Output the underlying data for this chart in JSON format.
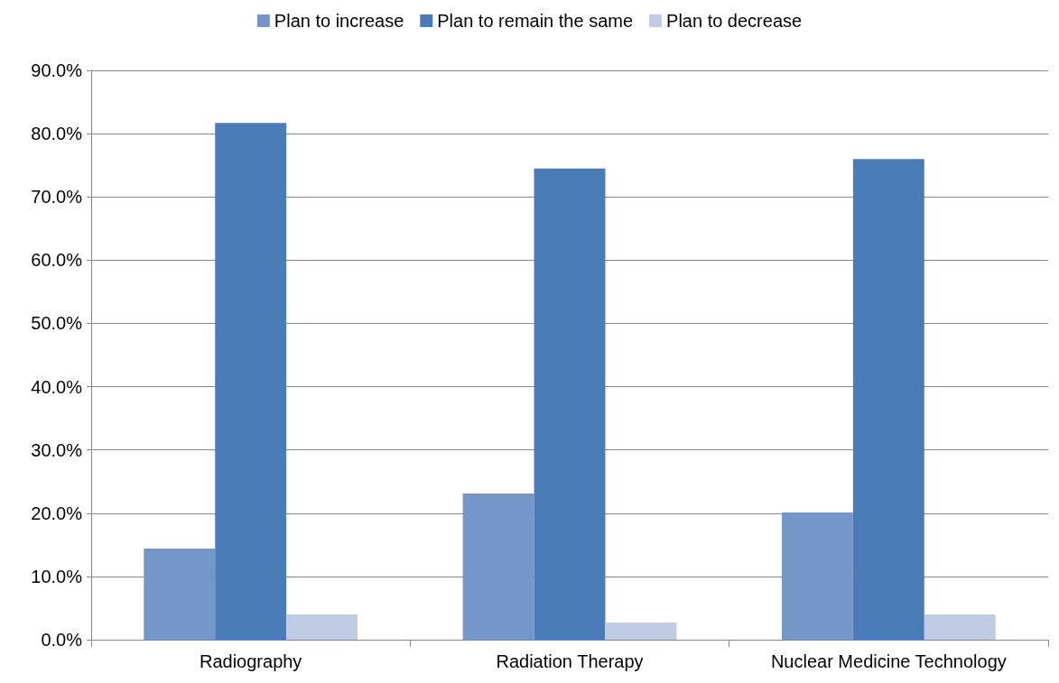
{
  "chart_data": {
    "type": "bar",
    "categories": [
      "Radiography",
      "Radiation Therapy",
      "Nuclear Medicine Technology"
    ],
    "series": [
      {
        "name": "Plan to increase",
        "color": "#7596c8",
        "values": [
          14.4,
          23.1,
          20.1
        ]
      },
      {
        "name": "Plan to remain the same",
        "color": "#4a7db7",
        "values": [
          81.7,
          74.5,
          76.0
        ]
      },
      {
        "name": "Plan to decrease",
        "color": "#c0cce3",
        "values": [
          4.0,
          2.7,
          4.0
        ]
      }
    ],
    "ylim": [
      0,
      90
    ],
    "yticks": [
      {
        "value": 0,
        "label": "0.0%"
      },
      {
        "value": 10,
        "label": "10.0%"
      },
      {
        "value": 20,
        "label": "20.0%"
      },
      {
        "value": 30,
        "label": "30.0%"
      },
      {
        "value": 40,
        "label": "40.0%"
      },
      {
        "value": 50,
        "label": "50.0%"
      },
      {
        "value": 60,
        "label": "60.0%"
      },
      {
        "value": 70,
        "label": "70.0%"
      },
      {
        "value": 80,
        "label": "80.0%"
      },
      {
        "value": 90,
        "label": "90.0%"
      }
    ],
    "grid": "y",
    "legend": "top"
  }
}
